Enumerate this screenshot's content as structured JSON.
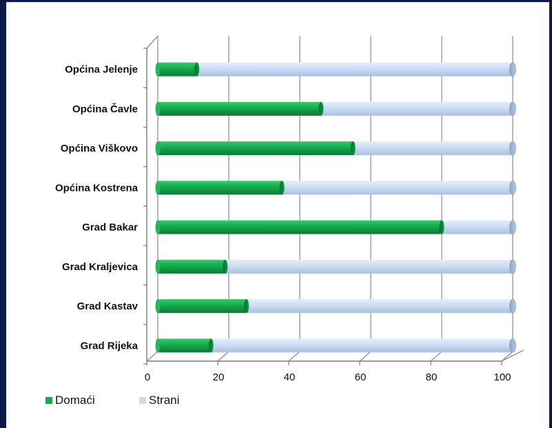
{
  "chart_data": {
    "type": "bar",
    "orientation": "horizontal",
    "stacked": true,
    "categories": [
      "Općina Jelenje",
      "Općina Čavle",
      "Općina Viškovo",
      "Općina Kostrena",
      "Grad Bakar",
      "Grad Kraljevica",
      "Grad Kastav",
      "Grad Rijeka"
    ],
    "series": [
      {
        "name": "Domaći",
        "values": [
          11,
          46,
          55,
          35,
          80,
          19,
          25,
          15
        ]
      },
      {
        "name": "Strani",
        "values": [
          89,
          54,
          45,
          65,
          20,
          81,
          75,
          85
        ]
      }
    ],
    "xlim": [
      0,
      100
    ],
    "xticks": [
      "0",
      "20",
      "40",
      "60",
      "80",
      "100"
    ],
    "title": "",
    "xlabel": "",
    "ylabel": "",
    "grid": true,
    "legend_position": "bottom-left",
    "colors": {
      "domaci": "#1aa84f",
      "strani": "#c9dbf2"
    }
  }
}
